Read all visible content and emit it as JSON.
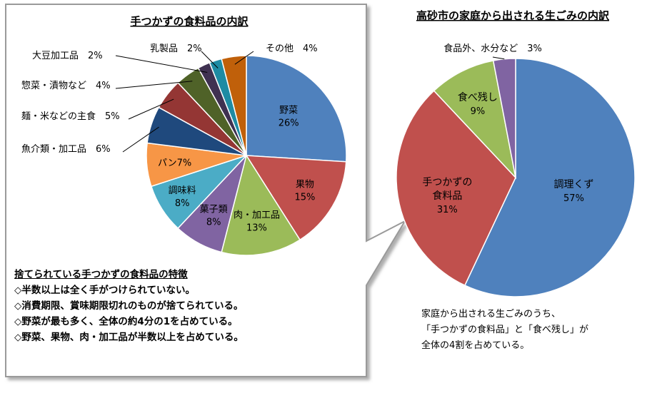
{
  "chart_data": [
    {
      "type": "pie",
      "title": "手つかずの食料品の内訳",
      "categories": [
        "野菜",
        "果物",
        "肉・加工品",
        "菓子類",
        "調味料",
        "パン",
        "魚介類・加工品",
        "麺・米などの主食",
        "惣菜・漬物など",
        "大豆加工品",
        "乳製品",
        "その他"
      ],
      "values": [
        26,
        15,
        13,
        8,
        8,
        7,
        6,
        5,
        4,
        2,
        2,
        4
      ],
      "labels": [
        "26%",
        "15%",
        "13%",
        "8%",
        "8%",
        "7%",
        "6%",
        "5%",
        "4%",
        "2%",
        "2%",
        "4%"
      ],
      "colors": [
        "#4f81bd",
        "#c0504d",
        "#9bbb59",
        "#8064a2",
        "#4bacc6",
        "#f79646",
        "#1f497d",
        "#943634",
        "#4f6228",
        "#3f3151",
        "#1e8ba3",
        "#c0600a"
      ]
    },
    {
      "type": "pie",
      "title": "高砂市の家庭から出される生ごみの内訳",
      "categories": [
        "調理くず",
        "手つかずの食料品",
        "食べ残し",
        "食品外、水分など"
      ],
      "values": [
        57,
        31,
        9,
        3
      ],
      "labels": [
        "57%",
        "31%",
        "9%",
        "3%"
      ],
      "colors": [
        "#4f81bd",
        "#c0504d",
        "#9bbb59",
        "#8064a2"
      ]
    }
  ],
  "notes": {
    "heading": "捨てられている手つかずの食料品の特徴",
    "lines": [
      "◇半数以上は全く手がつけられていない。",
      "◇消費期限、賞味期限切れのものが捨てられている。",
      "◇野菜が最も多く、全体の約4分の1を占めている。",
      "◇野菜、果物、肉・加工品が半数以上を占めている。"
    ]
  },
  "summary": {
    "lines": [
      "家庭から出される生ごみのうち、",
      "「手つかずの食料品」と「食べ残し」が",
      "全体の4割を占めている。"
    ]
  }
}
